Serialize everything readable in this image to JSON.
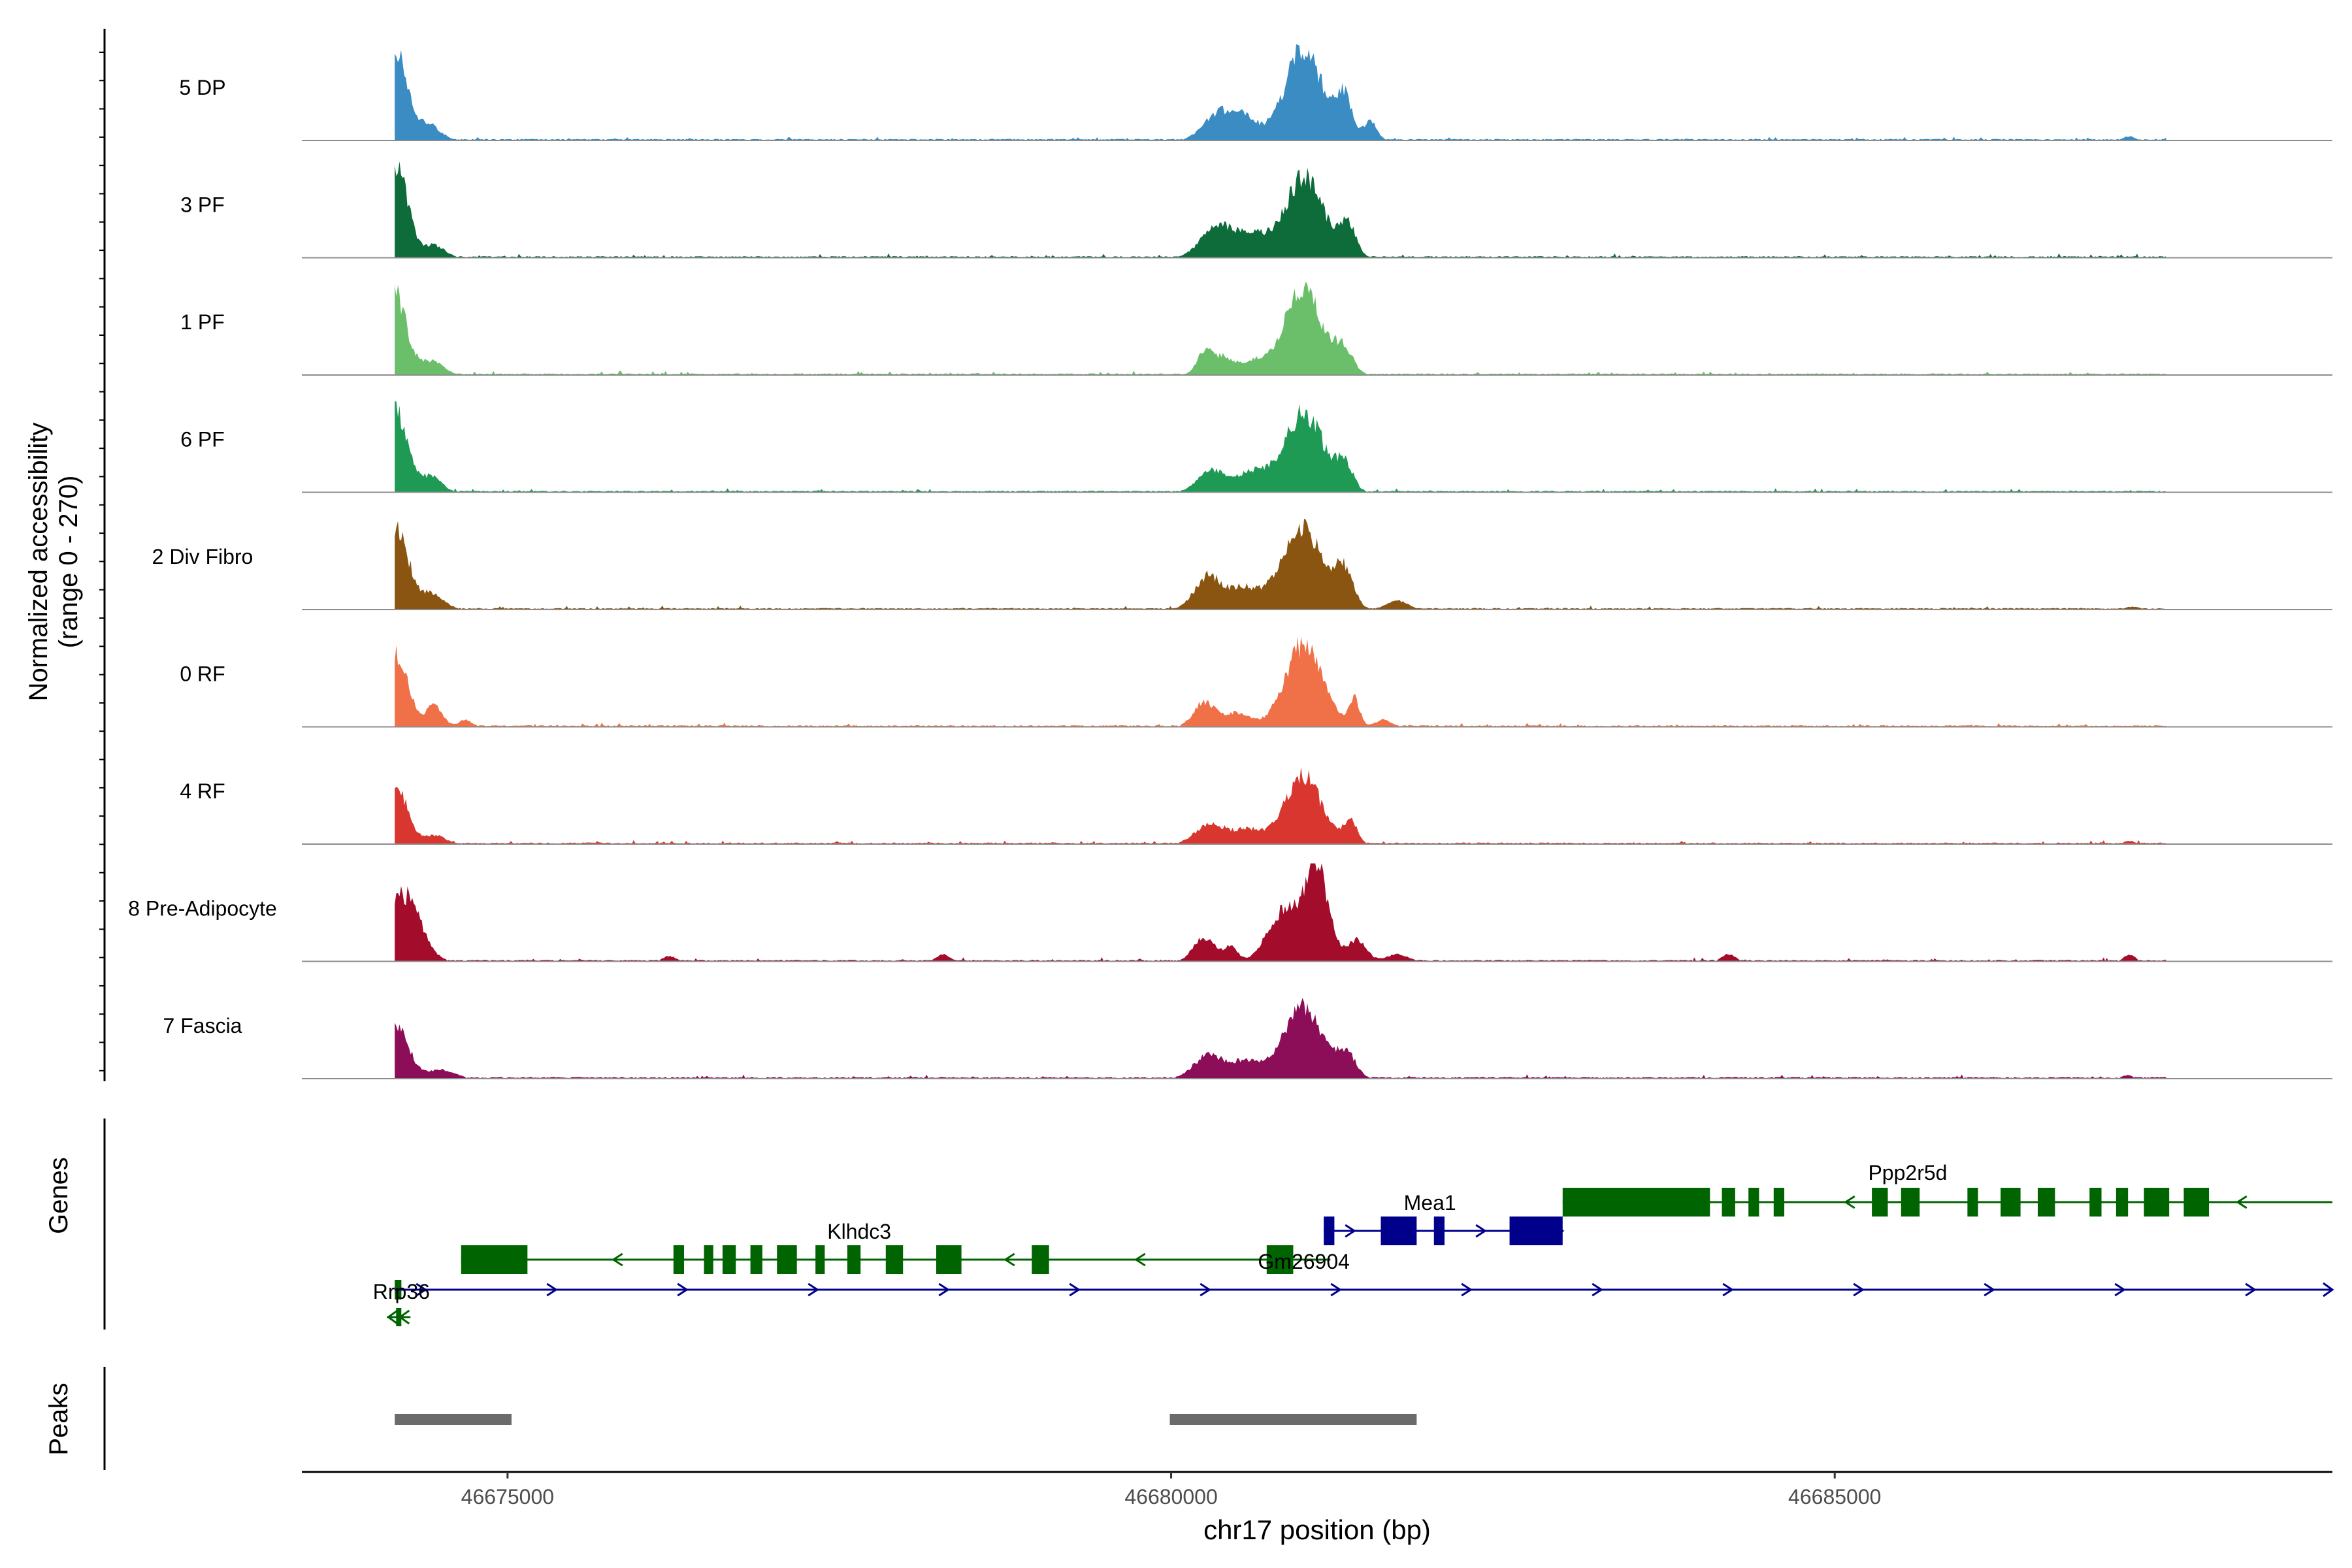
{
  "chart_data": {
    "type": "area",
    "title": "",
    "xlabel": "chr17 position (bp)",
    "ylabel_line1": "Normalized accessibility",
    "ylabel_line2": "(range 0 - 270)",
    "y_range": [
      0,
      270
    ],
    "xlim": [
      46673450,
      46688750
    ],
    "xticks": [
      46675000,
      46680000,
      46685000
    ],
    "xtick_labels": [
      "46675000",
      "46680000",
      "46685000"
    ],
    "track_labels": {
      "genes": "Genes",
      "peaks": "Peaks"
    },
    "tracks": [
      {
        "name": "5 DP",
        "color": "#3A8CC2",
        "peaks": [
          [
            46674160,
            250,
            85
          ],
          [
            46674400,
            45,
            90
          ],
          [
            46680350,
            70,
            110
          ],
          [
            46680550,
            60,
            110
          ],
          [
            46681000,
            260,
            140
          ],
          [
            46681300,
            120,
            60
          ],
          [
            46681500,
            55,
            50
          ],
          [
            46687220,
            12,
            40
          ]
        ]
      },
      {
        "name": "3 PF",
        "color": "#0E6B3A",
        "peaks": [
          [
            46674160,
            255,
            90
          ],
          [
            46674450,
            35,
            80
          ],
          [
            46680350,
            90,
            120
          ],
          [
            46680600,
            60,
            110
          ],
          [
            46681000,
            225,
            150
          ],
          [
            46681330,
            90,
            60
          ]
        ]
      },
      {
        "name": "1 PF",
        "color": "#6BBF6A",
        "peaks": [
          [
            46674150,
            235,
            85
          ],
          [
            46674420,
            40,
            90
          ],
          [
            46680250,
            60,
            60
          ],
          [
            46680400,
            50,
            80
          ],
          [
            46680620,
            40,
            80
          ],
          [
            46680990,
            250,
            140
          ],
          [
            46681300,
            70,
            70
          ]
        ]
      },
      {
        "name": "6 PF",
        "color": "#1F9A55",
        "peaks": [
          [
            46674160,
            230,
            85
          ],
          [
            46674420,
            45,
            80
          ],
          [
            46680300,
            60,
            100
          ],
          [
            46680600,
            55,
            120
          ],
          [
            46681000,
            225,
            150
          ],
          [
            46681310,
            70,
            60
          ]
        ]
      },
      {
        "name": "2 Div Fibro",
        "color": "#8A5511",
        "peaks": [
          [
            46674160,
            240,
            90
          ],
          [
            46674430,
            45,
            90
          ],
          [
            46680280,
            95,
            100
          ],
          [
            46680550,
            60,
            110
          ],
          [
            46680980,
            240,
            150
          ],
          [
            46681300,
            110,
            70
          ],
          [
            46681700,
            25,
            80
          ],
          [
            46687250,
            8,
            60
          ]
        ]
      },
      {
        "name": "0 RF",
        "color": "#F07048",
        "peaks": [
          [
            46674160,
            205,
            90
          ],
          [
            46674450,
            60,
            60
          ],
          [
            46674680,
            20,
            50
          ],
          [
            46680250,
            70,
            80
          ],
          [
            46680500,
            40,
            100
          ],
          [
            46681000,
            235,
            140
          ],
          [
            46681380,
            80,
            40
          ],
          [
            46681600,
            20,
            60
          ]
        ]
      },
      {
        "name": "4 RF",
        "color": "#D8362E",
        "peaks": [
          [
            46674160,
            165,
            85
          ],
          [
            46674450,
            25,
            80
          ],
          [
            46680300,
            60,
            110
          ],
          [
            46680580,
            40,
            100
          ],
          [
            46680990,
            195,
            140
          ],
          [
            46681350,
            65,
            50
          ],
          [
            46687220,
            10,
            40
          ]
        ]
      },
      {
        "name": "8 Pre-Adipocyte",
        "color": "#A40C2C",
        "peaks": [
          [
            46674220,
            190,
            120
          ],
          [
            46676220,
            15,
            50
          ],
          [
            46678280,
            20,
            50
          ],
          [
            46680250,
            70,
            80
          ],
          [
            46680450,
            40,
            50
          ],
          [
            46680850,
            140,
            120
          ],
          [
            46681100,
            260,
            90
          ],
          [
            46681400,
            60,
            70
          ],
          [
            46681700,
            20,
            80
          ],
          [
            46684200,
            20,
            50
          ],
          [
            46687220,
            20,
            40
          ],
          [
            46687580,
            25,
            50
          ]
        ]
      },
      {
        "name": "7 Fascia",
        "color": "#8C0D58",
        "peaks": [
          [
            46674160,
            150,
            95
          ],
          [
            46674500,
            25,
            100
          ],
          [
            46680280,
            65,
            110
          ],
          [
            46680560,
            50,
            110
          ],
          [
            46680990,
            205,
            145
          ],
          [
            46681320,
            70,
            70
          ],
          [
            46687200,
            10,
            40
          ]
        ]
      }
    ],
    "genes": [
      {
        "name": "Rrp36",
        "strand": "-",
        "row": "bottom",
        "color": "#006400",
        "start": 46674150,
        "end": 46674200,
        "exons": [
          [
            46674150,
            46674200
          ]
        ]
      },
      {
        "name": "Klhdc3",
        "strand": "-",
        "row": "low",
        "color": "#006400",
        "start": 46674650,
        "end": 46681200,
        "exons": [
          [
            46674650,
            46675150
          ],
          [
            46676250,
            46676330
          ],
          [
            46676480,
            46676550
          ],
          [
            46676620,
            46676720
          ],
          [
            46676830,
            46676920
          ],
          [
            46677030,
            46677180
          ],
          [
            46677320,
            46677390
          ],
          [
            46677560,
            46677660
          ],
          [
            46677850,
            46677980
          ],
          [
            46678230,
            46678420
          ],
          [
            46678950,
            46679080
          ],
          [
            46680720,
            46680920
          ]
        ]
      },
      {
        "name": "Gm26904",
        "strand": "+",
        "row": "bottom",
        "color": "#00008B",
        "start": 46674150,
        "end": 46688750,
        "exons": []
      },
      {
        "name": "Mea1",
        "strand": "+",
        "row": "high",
        "color": "#00008B",
        "start": 46681150,
        "end": 46682950,
        "exons": [
          [
            46681150,
            46681230
          ],
          [
            46681580,
            46681850
          ],
          [
            46681980,
            46682060
          ],
          [
            46682550,
            46682950
          ]
        ]
      },
      {
        "name": "Ppp2r5d",
        "strand": "-",
        "row": "top",
        "color": "#006400",
        "start": 46682950,
        "end": 46688750,
        "exons": [
          [
            46682950,
            46684060
          ],
          [
            46684150,
            46684250
          ],
          [
            46684350,
            46684430
          ],
          [
            46684540,
            46684620
          ],
          [
            46685280,
            46685400
          ],
          [
            46685500,
            46685640
          ],
          [
            46686000,
            46686080
          ],
          [
            46686250,
            46686400
          ],
          [
            46686530,
            46686660
          ],
          [
            46686920,
            46687010
          ],
          [
            46687120,
            46687210
          ],
          [
            46687330,
            46687520
          ],
          [
            46687630,
            46687820
          ]
        ]
      }
    ],
    "peak_regions": [
      [
        46674150,
        46675030
      ],
      [
        46679990,
        46681850
      ]
    ]
  }
}
